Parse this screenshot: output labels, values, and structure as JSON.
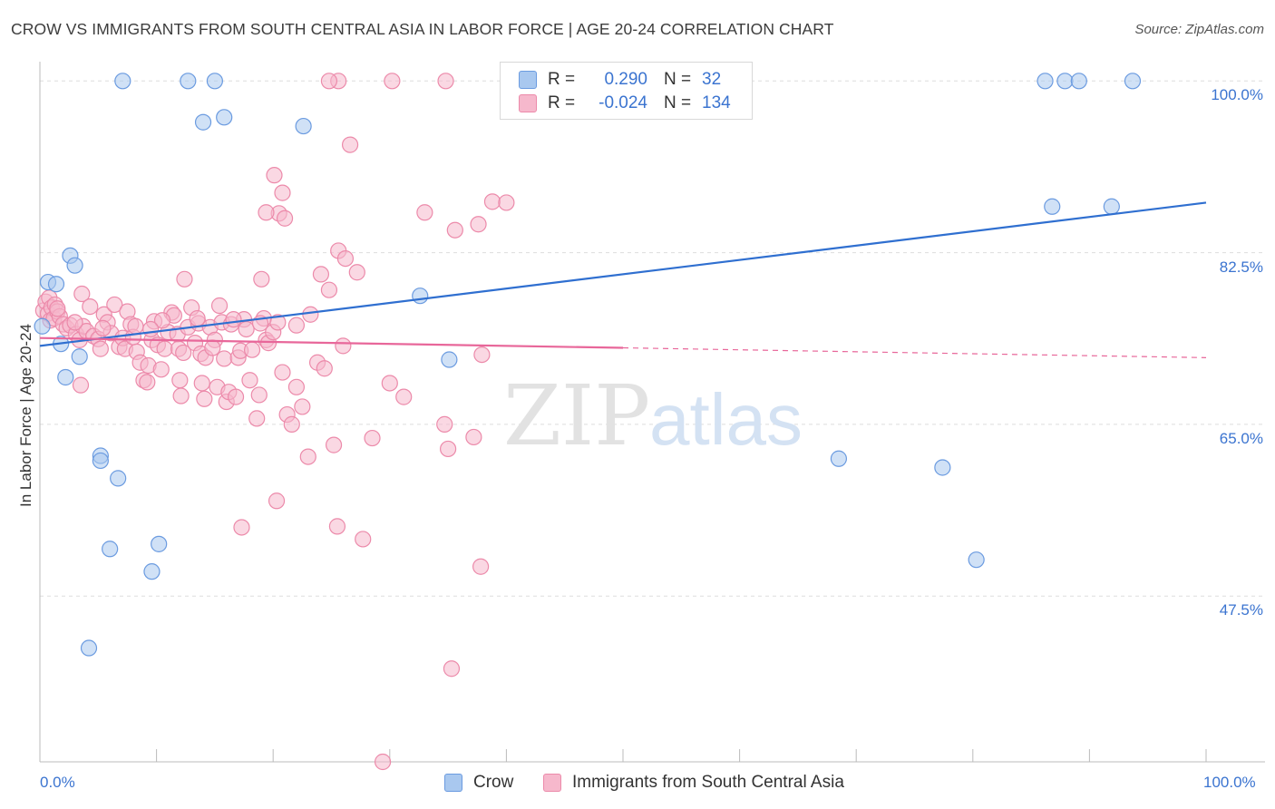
{
  "title": "CROW VS IMMIGRANTS FROM SOUTH CENTRAL ASIA IN LABOR FORCE | AGE 20-24 CORRELATION CHART",
  "source": "Source: ZipAtlas.com",
  "watermark": {
    "zip": "ZIP",
    "atlas": "atlas"
  },
  "legend_top": [
    {
      "r_label": "R =",
      "r_value": "0.290",
      "n_label": "N =",
      "n_value": "32"
    },
    {
      "r_label": "R =",
      "r_value": "-0.024",
      "n_label": "N =",
      "n_value": "134"
    }
  ],
  "legend_bottom": [
    "Crow",
    "Immigrants from South Central Asia"
  ],
  "colors": {
    "crow_fill": "#a9c8ef",
    "crow_stroke": "#6b9be0",
    "crow_line": "#2f6fd0",
    "imm_fill": "#f6b8cc",
    "imm_stroke": "#ec8aaa",
    "imm_line": "#e8679a",
    "grid": "#dddddd",
    "axis_text": "#3b74d0"
  },
  "chart_data": {
    "type": "scatter",
    "xlabel": "",
    "ylabel": "In Labor Force | Age 20-24",
    "x_tick_labels": [
      "0.0%",
      "100.0%"
    ],
    "y_tick_labels": [
      "100.0%",
      "82.5%",
      "65.0%",
      "47.5%"
    ],
    "y_ticks": [
      100.0,
      82.5,
      65.0,
      47.5
    ],
    "xlim": [
      0,
      100
    ],
    "ylim": [
      30.6,
      101.6
    ],
    "grid": true,
    "legend_position": "top-center",
    "series": [
      {
        "name": "Crow",
        "r": 0.29,
        "n": 32,
        "trend": {
          "x": [
            0,
            100
          ],
          "y": [
            73.0,
            87.6
          ],
          "solid_to": 100
        },
        "points": [
          [
            0.2,
            75.0
          ],
          [
            0.7,
            79.5
          ],
          [
            1.4,
            79.3
          ],
          [
            1.8,
            73.2
          ],
          [
            2.2,
            69.8
          ],
          [
            2.6,
            82.2
          ],
          [
            3.0,
            81.2
          ],
          [
            3.4,
            71.9
          ],
          [
            7.1,
            100.0
          ],
          [
            12.7,
            100.0
          ],
          [
            15.0,
            100.0
          ],
          [
            14.0,
            95.8
          ],
          [
            15.8,
            96.3
          ],
          [
            22.6,
            95.4
          ],
          [
            5.2,
            61.8
          ],
          [
            5.2,
            61.3
          ],
          [
            6.7,
            59.5
          ],
          [
            6.0,
            52.3
          ],
          [
            10.2,
            52.8
          ],
          [
            9.6,
            50.0
          ],
          [
            4.2,
            42.2
          ],
          [
            32.6,
            78.1
          ],
          [
            35.1,
            71.6
          ],
          [
            86.2,
            100.0
          ],
          [
            87.9,
            100.0
          ],
          [
            89.1,
            100.0
          ],
          [
            93.7,
            100.0
          ],
          [
            86.8,
            87.2
          ],
          [
            91.9,
            87.2
          ],
          [
            68.5,
            61.5
          ],
          [
            77.4,
            60.6
          ],
          [
            80.3,
            51.2
          ]
        ]
      },
      {
        "name": "Immigrants from South Central Asia",
        "r": -0.024,
        "n": 134,
        "trend": {
          "x": [
            0,
            100
          ],
          "y": [
            73.8,
            71.8
          ],
          "solid_to": 50
        },
        "points": [
          [
            0.3,
            76.6
          ],
          [
            0.5,
            77.5
          ],
          [
            0.7,
            76.3
          ],
          [
            0.8,
            77.9
          ],
          [
            0.9,
            75.6
          ],
          [
            1.0,
            76.9
          ],
          [
            1.2,
            75.8
          ],
          [
            1.3,
            77.2
          ],
          [
            1.5,
            76.5
          ],
          [
            1.7,
            76.0
          ],
          [
            2.0,
            75.2
          ],
          [
            2.3,
            74.8
          ],
          [
            2.6,
            75.1
          ],
          [
            3.1,
            74.2
          ],
          [
            3.4,
            73.6
          ],
          [
            3.7,
            75.0
          ],
          [
            4.0,
            74.5
          ],
          [
            3.5,
            69.0
          ],
          [
            3.6,
            78.3
          ],
          [
            4.3,
            77.0
          ],
          [
            4.6,
            74.0
          ],
          [
            5.0,
            73.7
          ],
          [
            5.2,
            72.7
          ],
          [
            5.5,
            76.2
          ],
          [
            5.8,
            75.4
          ],
          [
            6.1,
            74.3
          ],
          [
            6.4,
            77.2
          ],
          [
            6.8,
            72.9
          ],
          [
            7.1,
            73.8
          ],
          [
            7.3,
            72.7
          ],
          [
            7.5,
            76.5
          ],
          [
            7.8,
            75.2
          ],
          [
            8.0,
            73.9
          ],
          [
            8.3,
            72.4
          ],
          [
            8.6,
            71.3
          ],
          [
            8.9,
            69.5
          ],
          [
            9.2,
            69.3
          ],
          [
            9.3,
            71.0
          ],
          [
            9.6,
            73.6
          ],
          [
            9.8,
            75.5
          ],
          [
            10.1,
            73.1
          ],
          [
            10.4,
            70.6
          ],
          [
            10.7,
            72.7
          ],
          [
            11.0,
            74.4
          ],
          [
            11.3,
            76.4
          ],
          [
            11.5,
            76.1
          ],
          [
            11.8,
            74.2
          ],
          [
            11.9,
            72.7
          ],
          [
            12.0,
            69.5
          ],
          [
            12.1,
            67.9
          ],
          [
            12.4,
            79.8
          ],
          [
            12.7,
            74.9
          ],
          [
            13.0,
            76.9
          ],
          [
            13.3,
            73.3
          ],
          [
            13.6,
            75.3
          ],
          [
            13.8,
            72.2
          ],
          [
            13.9,
            69.2
          ],
          [
            14.1,
            67.6
          ],
          [
            14.2,
            71.8
          ],
          [
            14.6,
            74.9
          ],
          [
            15.0,
            73.6
          ],
          [
            15.2,
            68.8
          ],
          [
            15.4,
            77.1
          ],
          [
            15.6,
            75.4
          ],
          [
            15.8,
            71.7
          ],
          [
            16.0,
            67.3
          ],
          [
            16.2,
            68.3
          ],
          [
            16.4,
            75.2
          ],
          [
            16.8,
            67.8
          ],
          [
            17.0,
            71.8
          ],
          [
            17.2,
            72.5
          ],
          [
            17.5,
            75.7
          ],
          [
            17.7,
            74.7
          ],
          [
            18.0,
            69.5
          ],
          [
            18.2,
            72.6
          ],
          [
            18.6,
            65.6
          ],
          [
            18.8,
            68.0
          ],
          [
            19.0,
            79.8
          ],
          [
            19.2,
            75.8
          ],
          [
            19.4,
            73.6
          ],
          [
            19.6,
            73.3
          ],
          [
            20.0,
            74.4
          ],
          [
            20.4,
            75.4
          ],
          [
            20.8,
            70.3
          ],
          [
            21.2,
            66.0
          ],
          [
            21.6,
            65.0
          ],
          [
            22.0,
            68.8
          ],
          [
            22.5,
            66.8
          ],
          [
            23.0,
            61.7
          ],
          [
            23.2,
            76.2
          ],
          [
            23.8,
            71.3
          ],
          [
            24.1,
            80.3
          ],
          [
            24.4,
            70.7
          ],
          [
            24.8,
            78.7
          ],
          [
            25.2,
            62.9
          ],
          [
            25.6,
            82.7
          ],
          [
            26.0,
            73.0
          ],
          [
            26.2,
            81.9
          ],
          [
            26.6,
            93.5
          ],
          [
            27.2,
            80.5
          ],
          [
            20.1,
            90.4
          ],
          [
            20.5,
            86.5
          ],
          [
            20.8,
            88.6
          ],
          [
            19.4,
            86.6
          ],
          [
            21.0,
            86.0
          ],
          [
            20.3,
            57.2
          ],
          [
            17.3,
            54.5
          ],
          [
            25.5,
            54.6
          ],
          [
            27.7,
            53.3
          ],
          [
            28.5,
            63.6
          ],
          [
            30.0,
            69.2
          ],
          [
            31.2,
            67.8
          ],
          [
            33.0,
            86.6
          ],
          [
            34.7,
            65.0
          ],
          [
            35.0,
            62.5
          ],
          [
            35.6,
            84.8
          ],
          [
            37.2,
            63.7
          ],
          [
            37.9,
            72.1
          ],
          [
            37.6,
            85.4
          ],
          [
            38.8,
            87.7
          ],
          [
            40.0,
            87.6
          ],
          [
            37.8,
            50.5
          ],
          [
            35.3,
            40.1
          ],
          [
            29.4,
            30.6
          ],
          [
            25.6,
            100.0
          ],
          [
            24.8,
            100.0
          ],
          [
            30.2,
            100.0
          ],
          [
            34.8,
            100.0
          ],
          [
            8.2,
            75.0
          ],
          [
            10.5,
            75.6
          ],
          [
            1.5,
            76.8
          ],
          [
            3.0,
            75.4
          ],
          [
            5.4,
            74.8
          ],
          [
            9.5,
            74.7
          ],
          [
            12.3,
            72.3
          ],
          [
            14.8,
            72.8
          ],
          [
            16.6,
            75.7
          ],
          [
            18.9,
            75.3
          ],
          [
            22.0,
            75.1
          ],
          [
            13.5,
            75.8
          ]
        ]
      }
    ]
  }
}
